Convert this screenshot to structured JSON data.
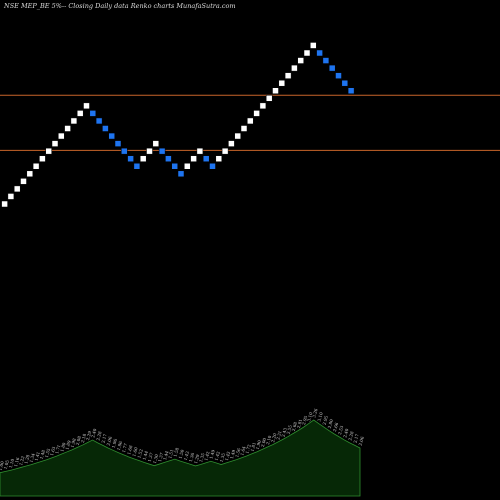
{
  "header": {
    "title": "NSE MEP_BE 5%-- Closing Daily data Renko charts MunafaSutra.com"
  },
  "colors": {
    "background": "#000000",
    "up_brick": "#ffffff",
    "down_brick": "#1e74f0",
    "reference_line": "#c8642a",
    "volume_fill": "#062806",
    "volume_stroke": "#2f8f2f"
  },
  "chart_data": {
    "type": "renko",
    "title": "NSE MEP_BE 5%-- Closing Daily data Renko charts MunafaSutra.com",
    "bricks": [
      {
        "dir": "up",
        "level": 0
      },
      {
        "dir": "up",
        "level": 1
      },
      {
        "dir": "up",
        "level": 2
      },
      {
        "dir": "up",
        "level": 3
      },
      {
        "dir": "up",
        "level": 4
      },
      {
        "dir": "up",
        "level": 5
      },
      {
        "dir": "up",
        "level": 6
      },
      {
        "dir": "up",
        "level": 7
      },
      {
        "dir": "up",
        "level": 8
      },
      {
        "dir": "up",
        "level": 9
      },
      {
        "dir": "up",
        "level": 10
      },
      {
        "dir": "up",
        "level": 11
      },
      {
        "dir": "up",
        "level": 12
      },
      {
        "dir": "up",
        "level": 13
      },
      {
        "dir": "down",
        "level": 12
      },
      {
        "dir": "down",
        "level": 11
      },
      {
        "dir": "down",
        "level": 10
      },
      {
        "dir": "down",
        "level": 9
      },
      {
        "dir": "down",
        "level": 8
      },
      {
        "dir": "down",
        "level": 7
      },
      {
        "dir": "down",
        "level": 6
      },
      {
        "dir": "down",
        "level": 5
      },
      {
        "dir": "up",
        "level": 6
      },
      {
        "dir": "up",
        "level": 7
      },
      {
        "dir": "up",
        "level": 8
      },
      {
        "dir": "down",
        "level": 7
      },
      {
        "dir": "down",
        "level": 6
      },
      {
        "dir": "down",
        "level": 5
      },
      {
        "dir": "down",
        "level": 4
      },
      {
        "dir": "up",
        "level": 5
      },
      {
        "dir": "up",
        "level": 6
      },
      {
        "dir": "up",
        "level": 7
      },
      {
        "dir": "down",
        "level": 6
      },
      {
        "dir": "down",
        "level": 5
      },
      {
        "dir": "up",
        "level": 6
      },
      {
        "dir": "up",
        "level": 7
      },
      {
        "dir": "up",
        "level": 8
      },
      {
        "dir": "up",
        "level": 9
      },
      {
        "dir": "up",
        "level": 10
      },
      {
        "dir": "up",
        "level": 11
      },
      {
        "dir": "up",
        "level": 12
      },
      {
        "dir": "up",
        "level": 13
      },
      {
        "dir": "up",
        "level": 14
      },
      {
        "dir": "up",
        "level": 15
      },
      {
        "dir": "up",
        "level": 16
      },
      {
        "dir": "up",
        "level": 17
      },
      {
        "dir": "up",
        "level": 18
      },
      {
        "dir": "up",
        "level": 19
      },
      {
        "dir": "up",
        "level": 20
      },
      {
        "dir": "up",
        "level": 21
      },
      {
        "dir": "down",
        "level": 20
      },
      {
        "dir": "down",
        "level": 19
      },
      {
        "dir": "down",
        "level": 18
      },
      {
        "dir": "down",
        "level": 17
      },
      {
        "dir": "down",
        "level": 16
      },
      {
        "dir": "down",
        "level": 15
      }
    ],
    "reference_levels": [
      14.4,
      7.1
    ],
    "volume_labels": [
      "1.00",
      "1.05",
      "1.10",
      "1.16",
      "1.22",
      "1.28",
      "1.34",
      "1.41",
      "1.48",
      "1.55",
      "1.63",
      "1.71",
      "1.80",
      "1.89",
      "1.98",
      "2.08",
      "2.18",
      "2.29",
      "2.40",
      "2.28",
      "2.17",
      "2.06",
      "1.96",
      "1.86",
      "1.77",
      "1.68",
      "1.60",
      "1.52",
      "1.44",
      "1.37",
      "1.30",
      "1.37",
      "1.44",
      "1.51",
      "1.58",
      "1.50",
      "1.43",
      "1.36",
      "1.29",
      "1.35",
      "1.42",
      "1.49",
      "1.42",
      "1.35",
      "1.42",
      "1.49",
      "1.56",
      "1.64",
      "1.72",
      "1.81",
      "1.90",
      "2.00",
      "2.10",
      "2.20",
      "2.31",
      "2.43",
      "2.55",
      "2.68",
      "2.81",
      "2.95",
      "3.10",
      "3.26",
      "3.10",
      "2.95",
      "2.80",
      "2.66",
      "2.53",
      "2.40",
      "2.28",
      "2.17",
      "2.06"
    ]
  }
}
